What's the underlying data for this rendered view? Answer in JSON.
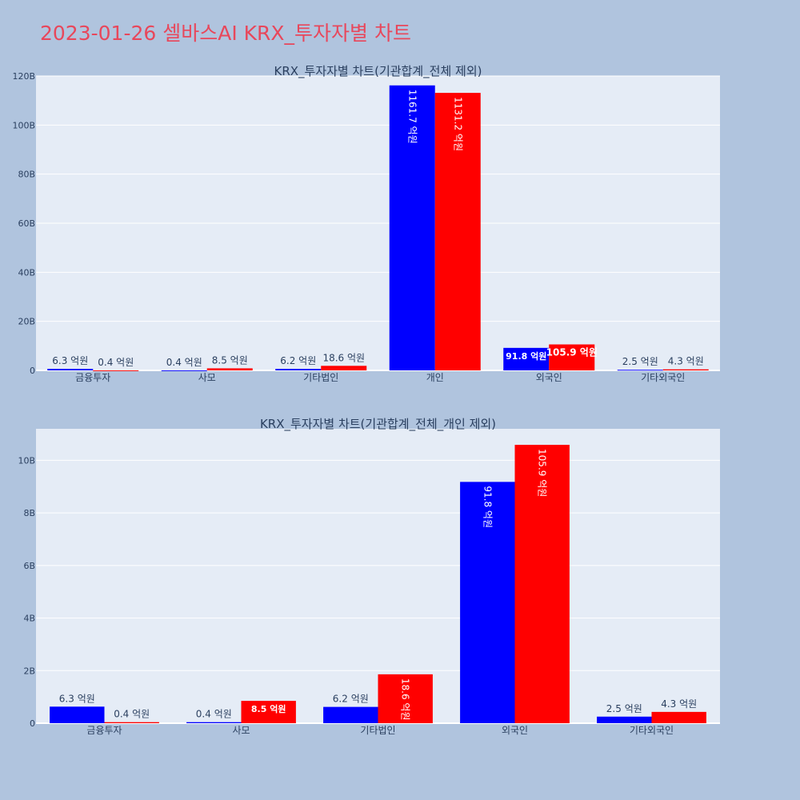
{
  "page": {
    "title": "2023-01-26 셀바스AI KRX_투자자별 차트"
  },
  "colors": {
    "series_a": "#0000ff",
    "series_b": "#ff0000",
    "plot_bg": "#e5ecf6",
    "grid": "#ffffff",
    "text": "#2a3f5f",
    "page_bg": "#b0c4de",
    "title": "#e8475b"
  },
  "chart_data": [
    {
      "type": "bar",
      "title": "KRX_투자자별 차트(기관합계_전체 제외)",
      "categories": [
        "금융투자",
        "사모",
        "기타법인",
        "개인",
        "외국인",
        "기타외국인"
      ],
      "ylim": [
        0,
        120
      ],
      "yticks": [
        0,
        20,
        40,
        60,
        80,
        100,
        120
      ],
      "ytick_labels": [
        "0",
        "20B",
        "40B",
        "60B",
        "80B",
        "100B",
        "120B"
      ],
      "grid": true,
      "series": [
        {
          "values": [
            0.63,
            0.04,
            0.62,
            116.17,
            9.18,
            0.25
          ],
          "labels": [
            "6.3 억원",
            "0.4 억원",
            "6.2 억원",
            "1161.7 억원",
            "91.8 억원",
            "2.5 억원"
          ]
        },
        {
          "values": [
            0.04,
            0.85,
            1.86,
            113.12,
            10.59,
            0.43
          ],
          "labels": [
            "0.4 억원",
            "8.5 억원",
            "18.6 억원",
            "1131.2 억원",
            "105.9 억원",
            "4.3 억원"
          ]
        }
      ]
    },
    {
      "type": "bar",
      "title": "KRX_투자자별 차트(기관합계_전체_개인 제외)",
      "categories": [
        "금융투자",
        "사모",
        "기타법인",
        "외국인",
        "기타외국인"
      ],
      "ylim": [
        0,
        11.2
      ],
      "yticks": [
        0,
        2,
        4,
        6,
        8,
        10
      ],
      "ytick_labels": [
        "0",
        "2B",
        "4B",
        "6B",
        "8B",
        "10B"
      ],
      "grid": true,
      "series": [
        {
          "values": [
            0.63,
            0.04,
            0.62,
            9.18,
            0.25
          ],
          "labels": [
            "6.3 억원",
            "0.4 억원",
            "6.2 억원",
            "91.8 억원",
            "2.5 억원"
          ]
        },
        {
          "values": [
            0.04,
            0.85,
            1.86,
            10.59,
            0.43
          ],
          "labels": [
            "0.4 억원",
            "8.5 억원",
            "18.6 억원",
            "105.9 억원",
            "4.3 억원"
          ]
        }
      ]
    }
  ]
}
